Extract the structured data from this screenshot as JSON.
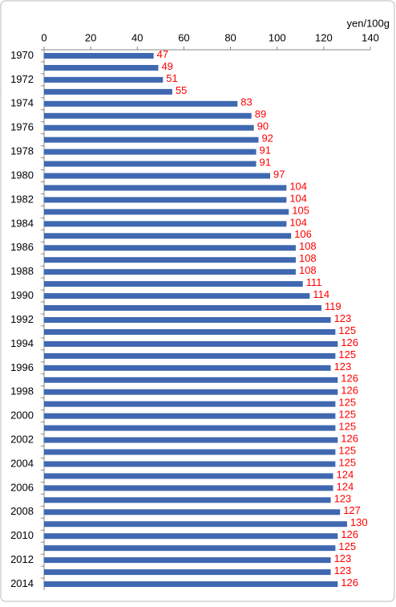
{
  "chart_data": {
    "type": "bar",
    "orientation": "horizontal",
    "unit_label": "yen/100g",
    "categories": [
      "1970",
      null,
      "1972",
      null,
      "1974",
      null,
      "1976",
      null,
      "1978",
      null,
      "1980",
      null,
      "1982",
      null,
      "1984",
      null,
      "1986",
      null,
      "1988",
      null,
      "1990",
      null,
      "1992",
      null,
      "1994",
      null,
      "1996",
      null,
      "1998",
      null,
      "2000",
      null,
      "2002",
      null,
      "2004",
      null,
      "2006",
      null,
      "2008",
      null,
      "2010",
      null,
      "2012",
      null,
      "2014"
    ],
    "values": [
      47,
      49,
      51,
      55,
      83,
      89,
      90,
      92,
      91,
      91,
      97,
      104,
      104,
      105,
      104,
      106,
      108,
      108,
      108,
      111,
      114,
      119,
      123,
      125,
      126,
      125,
      123,
      126,
      126,
      125,
      125,
      125,
      126,
      125,
      125,
      124,
      124,
      123,
      127,
      130,
      126,
      125,
      123,
      123,
      126
    ],
    "color": "#3f68b0",
    "label_color": "#ff0000",
    "xlim": [
      0,
      140
    ],
    "xticks": [
      0,
      20,
      40,
      60,
      80,
      100,
      120,
      140
    ],
    "grid": false
  }
}
